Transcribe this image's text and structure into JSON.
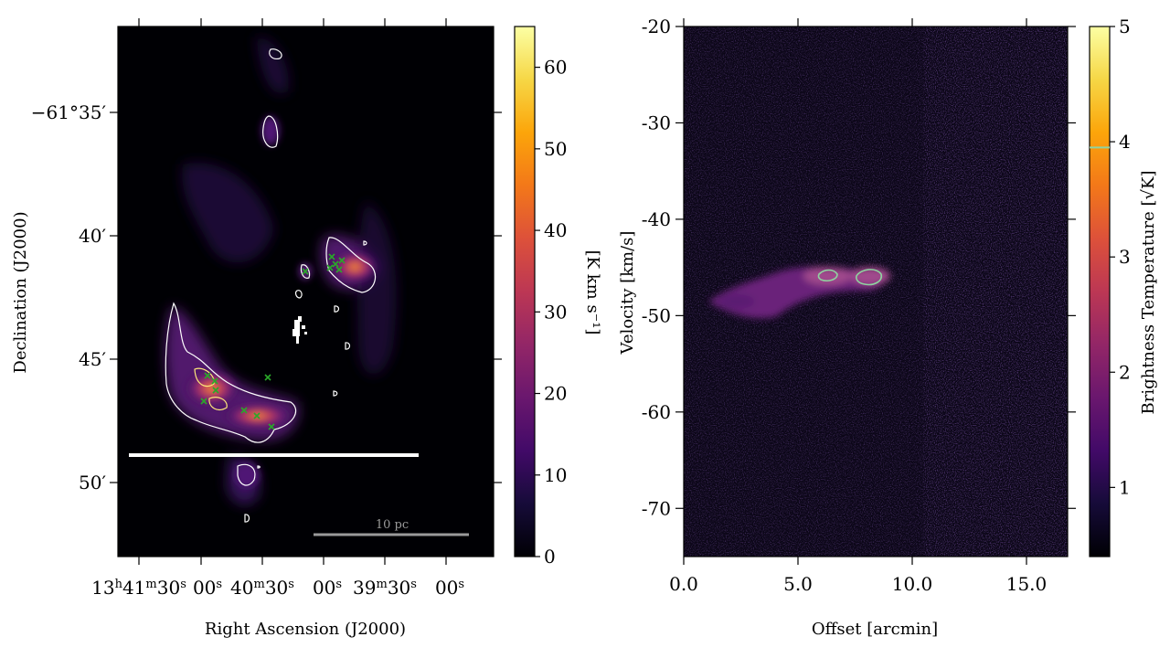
{
  "chart_data": [
    {
      "type": "heatmap",
      "title": "",
      "xlabel": "Right Ascension (J2000)",
      "ylabel": "Declination (J2000)",
      "x_ticks": [
        {
          "prefix": "13",
          "h": "h",
          "mid": "41",
          "m": "m",
          "sec": "30",
          "s": "s"
        },
        {
          "sec": "00",
          "s": "s"
        },
        {
          "mid": "40",
          "m": "m",
          "sec": "30",
          "s": "s"
        },
        {
          "sec": "00",
          "s": "s"
        },
        {
          "mid": "39",
          "m": "m",
          "sec": "30",
          "s": "s"
        },
        {
          "sec": "00",
          "s": "s"
        }
      ],
      "y_ticks": [
        "−61°35′",
        "40′",
        "45′",
        "50′"
      ],
      "colorbar": {
        "label": "[K km s⁻¹]",
        "ticks": [
          "0",
          "10",
          "20",
          "30",
          "40",
          "50",
          "60"
        ],
        "range": [
          0,
          65
        ],
        "colormap": "inferno"
      },
      "scalebar_label": "10 pc",
      "markers": {
        "type": "x",
        "color": "#2aa82a",
        "count": 14
      }
    },
    {
      "type": "heatmap",
      "title": "",
      "xlabel": "Offset [arcmin]",
      "ylabel": "Velocity [km/s]",
      "x_ticks": [
        "0.0",
        "5.0",
        "10.0",
        "15.0"
      ],
      "xlim": [
        0,
        16.8
      ],
      "y_ticks": [
        "-20",
        "-30",
        "-40",
        "-50",
        "-60",
        "-70"
      ],
      "ylim": [
        -75,
        -20
      ],
      "colorbar": {
        "label": "Brightness Temperature [√K]",
        "ticks": [
          "1",
          "2",
          "3",
          "4",
          "5"
        ],
        "range": [
          0.4,
          5
        ],
        "colormap": "inferno",
        "contour_level": 3.95
      }
    }
  ]
}
